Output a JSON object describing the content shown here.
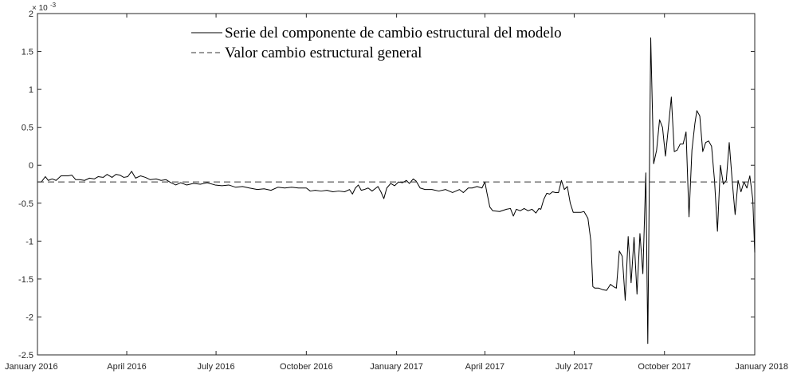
{
  "chart_data": {
    "type": "line",
    "title": "",
    "xlabel": "",
    "ylabel": "",
    "y_multiplier": {
      "base": "× 10",
      "exponent": "-3"
    },
    "ylim": [
      -2.5,
      2
    ],
    "yticks": [
      {
        "value": 2,
        "label": "2"
      },
      {
        "value": 1.5,
        "label": "1.5"
      },
      {
        "value": 1,
        "label": "1"
      },
      {
        "value": 0.5,
        "label": "0.5"
      },
      {
        "value": 0,
        "label": "0"
      },
      {
        "value": -0.5,
        "label": "-0.5"
      },
      {
        "value": -1,
        "label": "-1"
      },
      {
        "value": -1.5,
        "label": "-1.5"
      },
      {
        "value": -2,
        "label": "-2"
      },
      {
        "value": -2.5,
        "label": "-2.5"
      }
    ],
    "xlim": [
      "2016-01-01",
      "2018-01-01"
    ],
    "xticks": [
      {
        "date": "2016-01-01",
        "label": "January 2016"
      },
      {
        "date": "2016-04-01",
        "label": "April 2016"
      },
      {
        "date": "2016-07-01",
        "label": "July 2016"
      },
      {
        "date": "2016-10-01",
        "label": "October 2016"
      },
      {
        "date": "2017-01-01",
        "label": "January 2017"
      },
      {
        "date": "2017-04-01",
        "label": "April 2017"
      },
      {
        "date": "2017-07-01",
        "label": "July 2017"
      },
      {
        "date": "2017-10-01",
        "label": "October 2017"
      },
      {
        "date": "2018-01-01",
        "label": "January 2018"
      }
    ],
    "grid": false,
    "legend": "top-center",
    "series": [
      {
        "name": "Serie del componente de cambio estructural del modelo",
        "style": "solid",
        "color": "#000000",
        "points": [
          [
            "2016-01-01",
            -0.22
          ],
          [
            "2016-01-05",
            -0.22
          ],
          [
            "2016-01-09",
            -0.15
          ],
          [
            "2016-01-12",
            -0.2
          ],
          [
            "2016-01-16",
            -0.18
          ],
          [
            "2016-01-20",
            -0.2
          ],
          [
            "2016-01-25",
            -0.14
          ],
          [
            "2016-02-01",
            -0.14
          ],
          [
            "2016-02-05",
            -0.13
          ],
          [
            "2016-02-09",
            -0.19
          ],
          [
            "2016-02-13",
            -0.19
          ],
          [
            "2016-02-18",
            -0.2
          ],
          [
            "2016-02-23",
            -0.17
          ],
          [
            "2016-02-28",
            -0.18
          ],
          [
            "2016-03-03",
            -0.15
          ],
          [
            "2016-03-08",
            -0.16
          ],
          [
            "2016-03-12",
            -0.12
          ],
          [
            "2016-03-17",
            -0.16
          ],
          [
            "2016-03-21",
            -0.12
          ],
          [
            "2016-03-25",
            -0.13
          ],
          [
            "2016-03-29",
            -0.16
          ],
          [
            "2016-04-02",
            -0.15
          ],
          [
            "2016-04-06",
            -0.08
          ],
          [
            "2016-04-10",
            -0.17
          ],
          [
            "2016-04-15",
            -0.14
          ],
          [
            "2016-04-20",
            -0.16
          ],
          [
            "2016-04-25",
            -0.19
          ],
          [
            "2016-05-01",
            -0.18
          ],
          [
            "2016-05-06",
            -0.2
          ],
          [
            "2016-05-11",
            -0.19
          ],
          [
            "2016-05-16",
            -0.23
          ],
          [
            "2016-05-21",
            -0.26
          ],
          [
            "2016-05-26",
            -0.23
          ],
          [
            "2016-06-01",
            -0.26
          ],
          [
            "2016-06-08",
            -0.24
          ],
          [
            "2016-06-15",
            -0.25
          ],
          [
            "2016-06-22",
            -0.23
          ],
          [
            "2016-06-30",
            -0.26
          ],
          [
            "2016-07-07",
            -0.27
          ],
          [
            "2016-07-14",
            -0.26
          ],
          [
            "2016-07-21",
            -0.29
          ],
          [
            "2016-07-28",
            -0.28
          ],
          [
            "2016-08-04",
            -0.3
          ],
          [
            "2016-08-12",
            -0.32
          ],
          [
            "2016-08-19",
            -0.31
          ],
          [
            "2016-08-26",
            -0.33
          ],
          [
            "2016-09-02",
            -0.29
          ],
          [
            "2016-09-09",
            -0.3
          ],
          [
            "2016-09-16",
            -0.29
          ],
          [
            "2016-09-23",
            -0.3
          ],
          [
            "2016-10-01",
            -0.3
          ],
          [
            "2016-10-05",
            -0.34
          ],
          [
            "2016-10-10",
            -0.33
          ],
          [
            "2016-10-16",
            -0.34
          ],
          [
            "2016-10-22",
            -0.33
          ],
          [
            "2016-10-28",
            -0.35
          ],
          [
            "2016-11-03",
            -0.34
          ],
          [
            "2016-11-09",
            -0.35
          ],
          [
            "2016-11-14",
            -0.32
          ],
          [
            "2016-11-17",
            -0.38
          ],
          [
            "2016-11-20",
            -0.3
          ],
          [
            "2016-11-23",
            -0.26
          ],
          [
            "2016-11-26",
            -0.33
          ],
          [
            "2016-11-29",
            -0.32
          ],
          [
            "2016-12-03",
            -0.3
          ],
          [
            "2016-12-07",
            -0.34
          ],
          [
            "2016-12-10",
            -0.31
          ],
          [
            "2016-12-13",
            -0.28
          ],
          [
            "2016-12-16",
            -0.35
          ],
          [
            "2016-12-19",
            -0.44
          ],
          [
            "2016-12-22",
            -0.3
          ],
          [
            "2016-12-26",
            -0.24
          ],
          [
            "2016-12-30",
            -0.27
          ],
          [
            "2017-01-03",
            -0.22
          ],
          [
            "2017-01-07",
            -0.23
          ],
          [
            "2017-01-11",
            -0.2
          ],
          [
            "2017-01-14",
            -0.24
          ],
          [
            "2017-01-18",
            -0.18
          ],
          [
            "2017-01-21",
            -0.21
          ],
          [
            "2017-01-25",
            -0.3
          ],
          [
            "2017-01-30",
            -0.32
          ],
          [
            "2017-02-06",
            -0.32
          ],
          [
            "2017-02-13",
            -0.34
          ],
          [
            "2017-02-20",
            -0.32
          ],
          [
            "2017-02-27",
            -0.36
          ],
          [
            "2017-03-06",
            -0.32
          ],
          [
            "2017-03-10",
            -0.36
          ],
          [
            "2017-03-15",
            -0.3
          ],
          [
            "2017-03-19",
            -0.3
          ],
          [
            "2017-03-24",
            -0.28
          ],
          [
            "2017-03-29",
            -0.3
          ],
          [
            "2017-04-01",
            -0.22
          ],
          [
            "2017-04-03",
            -0.36
          ],
          [
            "2017-04-06",
            -0.55
          ],
          [
            "2017-04-09",
            -0.6
          ],
          [
            "2017-04-16",
            -0.61
          ],
          [
            "2017-04-23",
            -0.58
          ],
          [
            "2017-04-27",
            -0.57
          ],
          [
            "2017-04-30",
            -0.67
          ],
          [
            "2017-05-03",
            -0.58
          ],
          [
            "2017-05-07",
            -0.6
          ],
          [
            "2017-05-11",
            -0.57
          ],
          [
            "2017-05-15",
            -0.6
          ],
          [
            "2017-05-19",
            -0.58
          ],
          [
            "2017-05-23",
            -0.63
          ],
          [
            "2017-05-26",
            -0.57
          ],
          [
            "2017-05-28",
            -0.58
          ],
          [
            "2017-05-31",
            -0.45
          ],
          [
            "2017-06-03",
            -0.37
          ],
          [
            "2017-06-06",
            -0.38
          ],
          [
            "2017-06-09",
            -0.35
          ],
          [
            "2017-06-12",
            -0.36
          ],
          [
            "2017-06-15",
            -0.36
          ],
          [
            "2017-06-18",
            -0.2
          ],
          [
            "2017-06-21",
            -0.32
          ],
          [
            "2017-06-24",
            -0.28
          ],
          [
            "2017-06-27",
            -0.5
          ],
          [
            "2017-06-30",
            -0.62
          ],
          [
            "2017-07-04",
            -0.62
          ],
          [
            "2017-07-08",
            -0.62
          ],
          [
            "2017-07-11",
            -0.61
          ],
          [
            "2017-07-15",
            -0.7
          ],
          [
            "2017-07-18",
            -1.0
          ],
          [
            "2017-07-20",
            -1.6
          ],
          [
            "2017-07-22",
            -1.62
          ],
          [
            "2017-07-26",
            -1.62
          ],
          [
            "2017-07-30",
            -1.64
          ],
          [
            "2017-08-03",
            -1.65
          ],
          [
            "2017-08-07",
            -1.57
          ],
          [
            "2017-08-10",
            -1.6
          ],
          [
            "2017-08-13",
            -1.62
          ],
          [
            "2017-08-16",
            -1.13
          ],
          [
            "2017-08-19",
            -1.2
          ],
          [
            "2017-08-22",
            -1.78
          ],
          [
            "2017-08-25",
            -0.94
          ],
          [
            "2017-08-28",
            -1.55
          ],
          [
            "2017-08-31",
            -0.95
          ],
          [
            "2017-09-03",
            -1.7
          ],
          [
            "2017-09-06",
            -0.9
          ],
          [
            "2017-09-09",
            -1.43
          ],
          [
            "2017-09-12",
            -0.1
          ],
          [
            "2017-09-14",
            -2.35
          ],
          [
            "2017-09-17",
            1.68
          ],
          [
            "2017-09-20",
            0.02
          ],
          [
            "2017-09-23",
            0.2
          ],
          [
            "2017-09-26",
            0.6
          ],
          [
            "2017-09-29",
            0.5
          ],
          [
            "2017-10-02",
            0.12
          ],
          [
            "2017-10-05",
            0.5
          ],
          [
            "2017-10-08",
            0.9
          ],
          [
            "2017-10-11",
            0.18
          ],
          [
            "2017-10-14",
            0.2
          ],
          [
            "2017-10-17",
            0.28
          ],
          [
            "2017-10-20",
            0.28
          ],
          [
            "2017-10-23",
            0.44
          ],
          [
            "2017-10-26",
            -0.68
          ],
          [
            "2017-10-29",
            0.2
          ],
          [
            "2017-11-01",
            0.55
          ],
          [
            "2017-11-03",
            0.72
          ],
          [
            "2017-11-06",
            0.65
          ],
          [
            "2017-11-09",
            0.18
          ],
          [
            "2017-11-12",
            0.3
          ],
          [
            "2017-11-15",
            0.32
          ],
          [
            "2017-11-18",
            0.25
          ],
          [
            "2017-11-21",
            -0.2
          ],
          [
            "2017-11-24",
            -0.87
          ],
          [
            "2017-11-27",
            0.0
          ],
          [
            "2017-11-30",
            -0.25
          ],
          [
            "2017-12-03",
            -0.2
          ],
          [
            "2017-12-06",
            0.3
          ],
          [
            "2017-12-09",
            -0.2
          ],
          [
            "2017-12-12",
            -0.65
          ],
          [
            "2017-12-15",
            -0.2
          ],
          [
            "2017-12-18",
            -0.35
          ],
          [
            "2017-12-21",
            -0.22
          ],
          [
            "2017-12-24",
            -0.3
          ],
          [
            "2017-12-27",
            -0.14
          ],
          [
            "2017-12-30",
            -0.45
          ],
          [
            "2018-01-01",
            -1.15
          ]
        ]
      },
      {
        "name": "Valor cambio estructural general",
        "style": "dashed",
        "color": "#333333",
        "points": [
          [
            "2016-01-01",
            -0.22
          ],
          [
            "2018-01-01",
            -0.22
          ]
        ]
      }
    ]
  }
}
